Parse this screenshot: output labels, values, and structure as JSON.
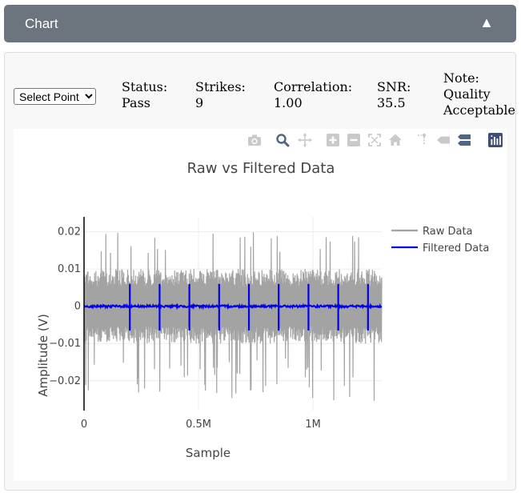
{
  "header": {
    "title": "Chart",
    "toggle_glyph": "▲"
  },
  "controls": {
    "select_options": [
      "Select Point"
    ],
    "selected": "Select Point"
  },
  "stats": {
    "status_label": "Status:",
    "status_value": "Pass",
    "strikes_label": "Strikes:",
    "strikes_value": "9",
    "correlation_label": "Correlation:",
    "correlation_value": "1.00",
    "snr_label": "SNR:",
    "snr_value": "35.5",
    "note_label": "Note:",
    "note_line1": "Quality",
    "note_line2": "Acceptable"
  },
  "modebar": {
    "icons": [
      "camera-icon",
      "zoom-icon",
      "pan-icon",
      "zoom-in-icon",
      "zoom-out-icon",
      "autoscale-icon",
      "home-icon",
      "spike-lines-icon",
      "hover-closest-icon",
      "hover-compare-icon",
      "plotly-logo-icon"
    ],
    "active": "zoom-icon"
  },
  "chart_data": {
    "type": "line",
    "title": "Raw vs Filtered Data",
    "xlabel": "Sample",
    "ylabel": "Amplitude (V)",
    "xlim": [
      0,
      1300000
    ],
    "ylim": [
      -0.028,
      0.024
    ],
    "x_ticks": [
      0,
      500000,
      1000000
    ],
    "x_tick_labels": [
      "0",
      "0.5M",
      "1M"
    ],
    "y_ticks": [
      0.02,
      0.01,
      0,
      -0.01,
      -0.02
    ],
    "y_tick_labels": [
      "0.02",
      "0.01",
      "0",
      "−0.01",
      "−0.02"
    ],
    "legend_position": "top-right",
    "grid": true,
    "series": [
      {
        "name": "Raw Data",
        "color": "#a3a3a3",
        "x_range": [
          0,
          1300000
        ],
        "typical_band": [
          -0.01,
          0.01
        ],
        "max": 0.02,
        "min": -0.026
      },
      {
        "name": "Filtered Data",
        "color": "#0000ee",
        "x_range": [
          0,
          1300000
        ],
        "baseline": 0,
        "spike_x": [
          200000,
          330000,
          460000,
          590000,
          720000,
          850000,
          980000,
          1110000,
          1240000
        ],
        "spike_max": 0.006,
        "spike_min": -0.0065
      }
    ]
  }
}
